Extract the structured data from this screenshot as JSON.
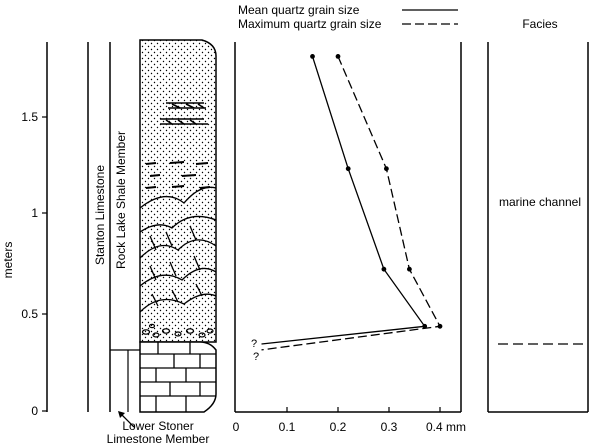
{
  "legend": {
    "mean": "Mean quartz grain size",
    "maximum": "Maximum quartz grain size"
  },
  "stratigraphy": {
    "formation": "Stanton Limestone",
    "upper_member": "Rock Lake Shale Member",
    "lower_member_line1": "Lower Stoner",
    "lower_member_line2": "Limestone Member"
  },
  "y_axis": {
    "label": "meters",
    "ticks": [
      "1.5",
      "1",
      "0.5",
      "0"
    ]
  },
  "x_axis": {
    "ticks": [
      "0",
      "0.1",
      "0.2",
      "0.3"
    ],
    "last_tick": "0.4 mm"
  },
  "facies": {
    "header": "Facies",
    "label": "marine channel"
  },
  "question_marks": [
    "?",
    "?"
  ],
  "chart_data": {
    "type": "line",
    "title": "",
    "xlabel": "",
    "ylabel": "meters",
    "xlim": [
      0,
      0.45
    ],
    "ylim": [
      0,
      1.9
    ],
    "series": [
      {
        "name": "Mean quartz grain size",
        "style": "solid",
        "points": [
          [
            0.15,
            1.8
          ],
          [
            0.22,
            1.23
          ],
          [
            0.29,
            0.72
          ],
          [
            0.37,
            0.43
          ],
          [
            0.05,
            0.34
          ]
        ]
      },
      {
        "name": "Maximum quartz grain size",
        "style": "dashed",
        "points": [
          [
            0.2,
            1.8
          ],
          [
            0.295,
            1.23
          ],
          [
            0.34,
            0.72
          ],
          [
            0.4,
            0.43
          ],
          [
            0.05,
            0.31
          ]
        ]
      }
    ]
  }
}
